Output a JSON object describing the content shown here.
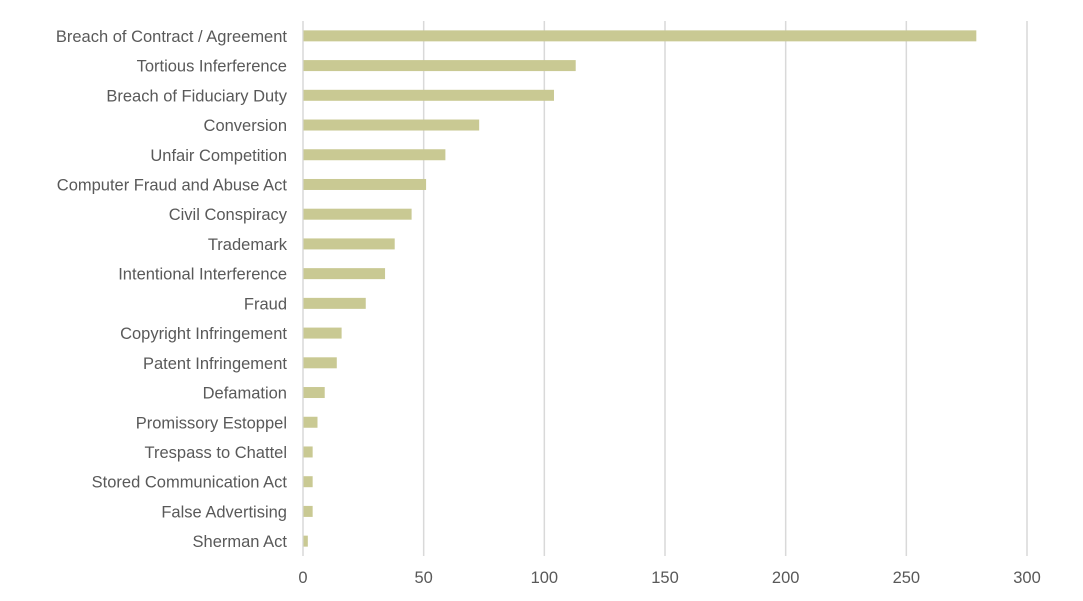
{
  "chart_data": {
    "type": "bar",
    "orientation": "horizontal",
    "title": "",
    "xlabel": "",
    "ylabel": "",
    "xlim": [
      0,
      300
    ],
    "xticks": [
      0,
      50,
      100,
      150,
      200,
      250,
      300
    ],
    "grid": "vertical",
    "legend": "none",
    "bar_color": "#c9c993",
    "categories": [
      "Breach of Contract / Agreement",
      "Tortious Inferference",
      "Breach of Fiduciary Duty",
      "Conversion",
      "Unfair Competition",
      "Computer Fraud and Abuse Act",
      "Civil Conspiracy",
      "Trademark",
      "Intentional Interference",
      "Fraud",
      "Copyright Infringement",
      "Patent Infringement",
      "Defamation",
      "Promissory Estoppel",
      "Trespass to Chattel",
      "Stored Communication Act",
      "False Advertising",
      "Sherman Act"
    ],
    "values": [
      279,
      113,
      104,
      73,
      59,
      51,
      45,
      38,
      34,
      26,
      16,
      14,
      9,
      6,
      4,
      4,
      4,
      2
    ]
  }
}
